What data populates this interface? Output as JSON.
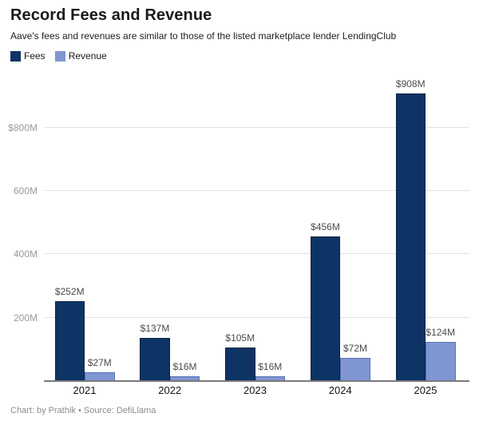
{
  "header": {
    "title": "Record Fees and Revenue",
    "subtitle": "Aave's fees and revenues are similar to those of the listed marketplace lender LendingClub"
  },
  "colors": {
    "fees_fill": "#0d3464",
    "fees_border": "#0a2342",
    "revenue_fill": "#8096d2",
    "revenue_border": "#5570b5",
    "gridline": "#e2e2e2",
    "axis_line": "#7a7a7a",
    "y_tick_text": "#9b9b9b",
    "value_label_text": "#4b4b4b"
  },
  "chart_data": {
    "type": "bar",
    "title": "Record Fees and Revenue",
    "subtitle": "Aave's fees and revenues are similar to those of the listed marketplace lender LendingClub",
    "categories": [
      "2021",
      "2022",
      "2023",
      "2024",
      "2025"
    ],
    "series": [
      {
        "name": "Fees",
        "color": "#0d3464",
        "border": "#0a2342",
        "values": [
          252,
          137,
          105,
          456,
          908
        ],
        "labels": [
          "$252M",
          "$137M",
          "$105M",
          "$456M",
          "$908M"
        ]
      },
      {
        "name": "Revenue",
        "color": "#8096d2",
        "border": "#5570b5",
        "values": [
          27,
          16,
          16,
          72,
          124
        ],
        "labels": [
          "$27M",
          "$16M",
          "$16M",
          "$72M",
          "$124M"
        ]
      }
    ],
    "y_ticks": [
      {
        "value": 200,
        "label": "200M"
      },
      {
        "value": 400,
        "label": "400M"
      },
      {
        "value": 600,
        "label": "600M"
      },
      {
        "value": 800,
        "label": "$800M"
      }
    ],
    "xlabel": "",
    "ylabel": "",
    "ylim": [
      0,
      964
    ],
    "grid": true,
    "legend_position": "top-left"
  },
  "footer": {
    "text": "Chart: by Prathik • Source: DefiLlama"
  }
}
